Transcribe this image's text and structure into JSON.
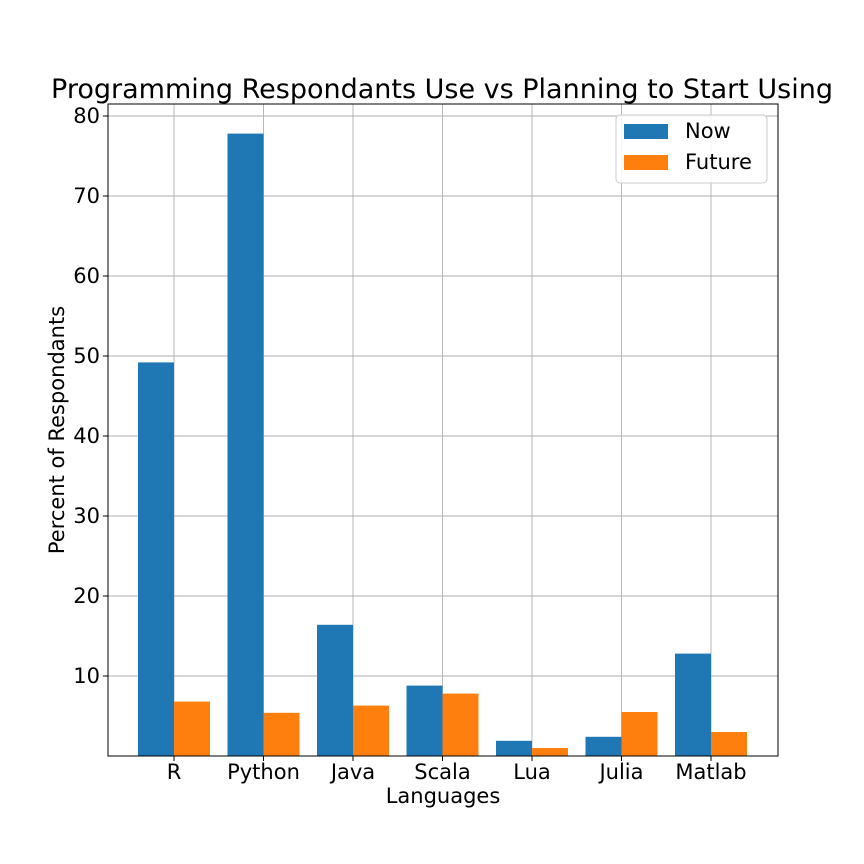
{
  "chart_data": {
    "type": "bar",
    "title": "Programming Respondants Use vs Planning to Start Using",
    "xlabel": "Languages",
    "ylabel": "Percent of Respondants",
    "categories": [
      "R",
      "Python",
      "Java",
      "Scala",
      "Lua",
      "Julia",
      "Matlab"
    ],
    "series": [
      {
        "name": "Now",
        "color": "#1f77b4",
        "values": [
          49.2,
          77.8,
          16.4,
          8.8,
          1.9,
          2.4,
          12.8
        ]
      },
      {
        "name": "Future",
        "color": "#ff7f0e",
        "values": [
          6.8,
          5.4,
          6.3,
          7.8,
          1.0,
          5.5,
          3.0
        ]
      }
    ],
    "ylim": [
      0,
      80
    ],
    "yticks": [
      10,
      20,
      30,
      40,
      50,
      60,
      70,
      80
    ],
    "grid": true,
    "legend": "top-right"
  }
}
